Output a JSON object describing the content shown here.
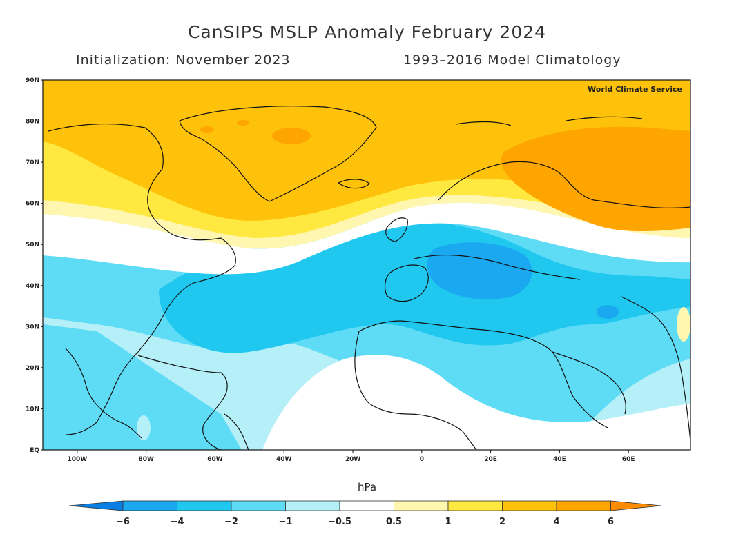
{
  "title": "CanSIPS MSLP Anomaly February 2024",
  "subtitle_left": "Initialization: November 2023",
  "subtitle_right": "1993–2016 Model Climatology",
  "watermark": "World Climate Service",
  "units": "hPa",
  "map_data": {
    "type": "filled-contour-map",
    "variable": "Mean sea level pressure anomaly",
    "lon_ticks": [
      "100W",
      "80W",
      "60W",
      "40W",
      "20W",
      "0",
      "20E",
      "40E",
      "60E"
    ],
    "lat_ticks": [
      "90N",
      "80N",
      "70N",
      "60N",
      "50N",
      "40N",
      "30N",
      "20N",
      "10N",
      "EQ"
    ],
    "lon_range": [
      -110,
      78
    ],
    "lat_range": [
      0,
      90
    ],
    "features": [
      {
        "name": "Arctic / Greenland high anomaly",
        "level": "2 to 4"
      },
      {
        "name": "Central Greenland peak",
        "level": "4 to 6"
      },
      {
        "name": "Northern Russia high anomaly",
        "level": "4 to 6"
      },
      {
        "name": "Subtropical Atlantic low anomaly",
        "level": "-2 to -4"
      },
      {
        "name": "Balkans low anomaly center",
        "level": "-4 to -6"
      },
      {
        "name": "West Africa near-normal",
        "level": "-0.5 to 0.5"
      }
    ]
  },
  "colorbar": {
    "labels": [
      "-6",
      "-4",
      "-2",
      "-1",
      "-0.5",
      "0.5",
      "1",
      "2",
      "4",
      "6"
    ],
    "colors": [
      "#0a7fe3",
      "#1aa8f0",
      "#20c8f0",
      "#5edcf5",
      "#b5f0f8",
      "#ffffff",
      "#fff6b0",
      "#ffe840",
      "#ffc20a",
      "#ffa500",
      "#ff8c00"
    ]
  }
}
